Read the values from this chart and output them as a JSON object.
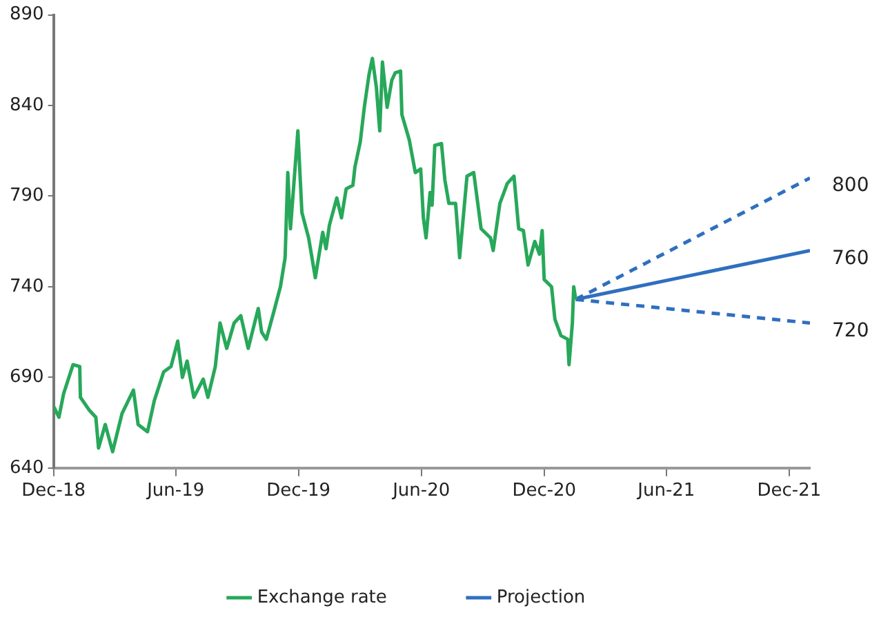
{
  "chart_data": {
    "type": "line",
    "xlim": [
      "2018-12-01",
      "2022-01-01"
    ],
    "ylim": [
      640,
      890
    ],
    "xticks": [
      {
        "value": "2018-12-01",
        "label": "Dec-18"
      },
      {
        "value": "2019-06-01",
        "label": "Jun-19"
      },
      {
        "value": "2019-12-01",
        "label": "Dec-19"
      },
      {
        "value": "2020-06-01",
        "label": "Jun-20"
      },
      {
        "value": "2020-12-01",
        "label": "Dec-20"
      },
      {
        "value": "2021-06-01",
        "label": "Jun-21"
      },
      {
        "value": "2021-12-01",
        "label": "Dec-21"
      }
    ],
    "yticks": [
      640,
      690,
      740,
      790,
      840,
      890
    ],
    "grid": false,
    "legend": "bottom",
    "marker": "none",
    "series": [
      {
        "name": "Exchange rate",
        "color": "#27a85a",
        "line_style": "solid",
        "x": [
          "2018-12-01",
          "2018-12-09",
          "2018-12-16",
          "2018-12-30",
          "2019-01-09",
          "2019-01-10",
          "2019-01-23",
          "2019-02-02",
          "2019-02-06",
          "2019-02-16",
          "2019-02-27",
          "2019-03-13",
          "2019-03-30",
          "2019-04-06",
          "2019-04-20",
          "2019-04-30",
          "2019-05-14",
          "2019-05-25",
          "2019-06-04",
          "2019-06-11",
          "2019-06-18",
          "2019-06-28",
          "2019-07-12",
          "2019-07-19",
          "2019-07-30",
          "2019-08-06",
          "2019-08-16",
          "2019-08-27",
          "2019-09-06",
          "2019-09-17",
          "2019-10-02",
          "2019-10-07",
          "2019-10-14",
          "2019-10-25",
          "2019-11-04",
          "2019-11-11",
          "2019-11-15",
          "2019-11-19",
          "2019-11-30",
          "2019-12-06",
          "2019-12-16",
          "2019-12-26",
          "2020-01-06",
          "2020-01-11",
          "2020-01-16",
          "2020-01-27",
          "2020-02-03",
          "2020-02-10",
          "2020-02-20",
          "2020-02-23",
          "2020-03-02",
          "2020-03-08",
          "2020-03-15",
          "2020-03-20",
          "2020-03-26",
          "2020-03-31",
          "2020-04-04",
          "2020-04-11",
          "2020-04-18",
          "2020-04-23",
          "2020-05-01",
          "2020-05-03",
          "2020-05-14",
          "2020-05-23",
          "2020-05-31",
          "2020-06-04",
          "2020-06-08",
          "2020-06-14",
          "2020-06-17",
          "2020-06-21",
          "2020-07-01",
          "2020-07-06",
          "2020-07-12",
          "2020-07-22",
          "2020-07-26",
          "2020-07-28",
          "2020-08-08",
          "2020-08-18",
          "2020-08-29",
          "2020-09-12",
          "2020-09-16",
          "2020-09-26",
          "2020-10-07",
          "2020-10-17",
          "2020-10-24",
          "2020-10-31",
          "2020-11-07",
          "2020-11-17",
          "2020-11-24",
          "2020-11-28",
          "2020-12-01",
          "2020-12-12",
          "2020-12-17",
          "2020-12-26",
          "2021-01-05",
          "2021-01-07",
          "2021-01-12",
          "2021-01-14",
          "2021-01-17"
        ],
        "values": [
          674,
          668,
          681,
          697,
          696,
          679,
          672,
          668,
          651,
          664,
          649,
          670,
          683,
          664,
          660,
          677,
          693,
          696,
          710,
          690,
          699,
          679,
          689,
          679,
          696,
          720,
          706,
          720,
          724,
          706,
          728,
          715,
          711,
          726,
          740,
          756,
          803,
          772,
          826,
          781,
          767,
          745,
          770,
          761,
          774,
          789,
          778,
          794,
          796,
          806,
          820,
          839,
          857,
          866,
          850,
          826,
          864,
          839,
          854,
          858,
          859,
          835,
          821,
          803,
          805,
          778,
          767,
          792,
          785,
          818,
          819,
          799,
          786,
          786,
          767,
          756,
          801,
          803,
          772,
          767,
          760,
          786,
          797,
          801,
          772,
          771,
          752,
          765,
          758,
          771,
          744,
          740,
          722,
          713,
          711,
          697,
          720,
          740,
          733
        ]
      },
      {
        "name": "Projection",
        "color": "#2f6fbf",
        "line_style": "solid",
        "x": [
          "2021-01-17",
          "2022-01-01"
        ],
        "values": [
          733,
          760
        ]
      },
      {
        "color": "#2f6fbf",
        "line_style": "dashed",
        "x": [
          "2021-01-17",
          "2022-01-01"
        ],
        "values": [
          733,
          800
        ]
      },
      {
        "color": "#2f6fbf",
        "line_style": "dashed",
        "x": [
          "2021-01-17",
          "2022-01-01"
        ],
        "values": [
          733,
          720
        ]
      }
    ],
    "annotations": [
      {
        "text": "800",
        "x": "2022-01-01",
        "y": 800
      },
      {
        "text": "760",
        "x": "2022-01-01",
        "y": 760
      },
      {
        "text": "720",
        "x": "2022-01-01",
        "y": 720
      }
    ]
  }
}
